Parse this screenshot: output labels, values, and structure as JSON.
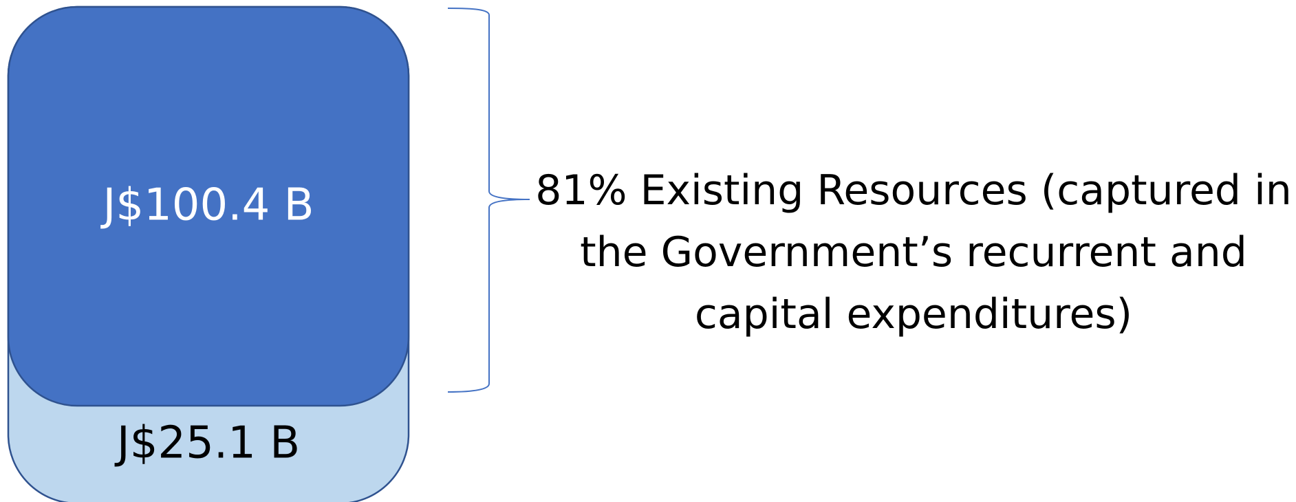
{
  "diagram": {
    "upper_block": {
      "label": "J$100.4 B",
      "fill": "#4472C4",
      "stroke": "#2F528F",
      "text_color": "#FFFFFF"
    },
    "lower_block": {
      "label": "J$25.1 B",
      "fill": "#BDD7EE",
      "stroke": "#2F528F",
      "text_color": "#000000"
    },
    "brace_color": "#4472C4",
    "caption": "81% Existing Resources (captured in the Government’s recurrent and capital expenditures)"
  }
}
